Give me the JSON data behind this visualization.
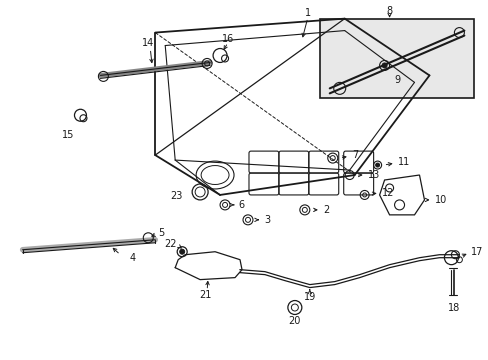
{
  "bg_color": "#ffffff",
  "line_color": "#1a1a1a",
  "fig_width": 4.89,
  "fig_height": 3.6,
  "dpi": 100,
  "inset_bg": "#e8e8e8"
}
